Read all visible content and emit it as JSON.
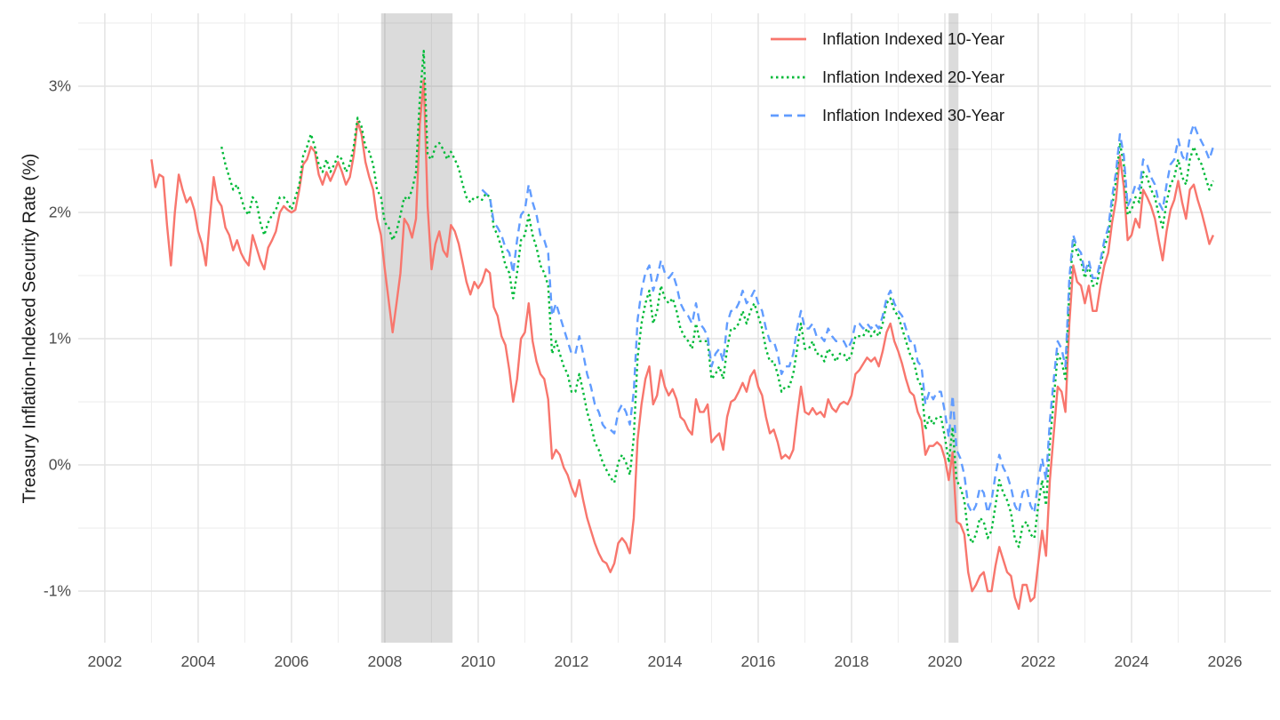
{
  "figure": {
    "background": "#ffffff",
    "axis_text_color": "#4d4d4d",
    "axis_title_color": "#1a1a1a",
    "grid_major_color": "#e3e3e3",
    "grid_minor_color": "#eeeeee",
    "recession_band_color": "rgba(127,127,127,0.28)"
  },
  "chart_data": {
    "type": "line",
    "title": "",
    "xlabel": "",
    "ylabel": "Treasury Inflation-Indexed Security Rate (%)",
    "grid": "major+minor",
    "legend_position": "top-right-inside",
    "xlim": [
      2001.43,
      2026.99
    ],
    "ylim": [
      -1.408,
      3.577
    ],
    "x_ticks": [
      2002,
      2004,
      2006,
      2008,
      2010,
      2012,
      2014,
      2016,
      2018,
      2020,
      2022,
      2024,
      2026
    ],
    "x_tick_labels": [
      "2002",
      "2004",
      "2006",
      "2008",
      "2010",
      "2012",
      "2014",
      "2016",
      "2018",
      "2020",
      "2022",
      "2024",
      "2026"
    ],
    "x_minor_ticks": [
      2003,
      2005,
      2007,
      2009,
      2011,
      2013,
      2015,
      2017,
      2019,
      2021,
      2023,
      2025
    ],
    "y_ticks": [
      3,
      2,
      1,
      0,
      -1
    ],
    "y_tick_labels": [
      "3%",
      "2%",
      "1%",
      "0%",
      "-1%"
    ],
    "y_minor_ticks": [
      3.5,
      2.5,
      1.5,
      0.5,
      -0.5
    ],
    "recession_bands": [
      {
        "start": 2007.92,
        "end": 2009.45
      },
      {
        "start": 2020.08,
        "end": 2020.29
      }
    ],
    "series": [
      {
        "name": "Inflation Indexed 10-Year",
        "color": "#F8766D",
        "line_style": "solid",
        "start_year": 2003.0,
        "interval_years": 0.083333,
        "values": [
          2.42,
          2.2,
          2.3,
          2.28,
          1.9,
          1.58,
          2.0,
          2.3,
          2.18,
          2.08,
          2.12,
          2.02,
          1.85,
          1.75,
          1.58,
          1.95,
          2.28,
          2.1,
          2.05,
          1.88,
          1.82,
          1.7,
          1.78,
          1.68,
          1.62,
          1.58,
          1.82,
          1.72,
          1.62,
          1.55,
          1.72,
          1.78,
          1.85,
          2.0,
          2.05,
          2.02,
          2.0,
          2.02,
          2.18,
          2.38,
          2.42,
          2.52,
          2.48,
          2.3,
          2.22,
          2.32,
          2.25,
          2.32,
          2.4,
          2.32,
          2.22,
          2.28,
          2.45,
          2.72,
          2.62,
          2.4,
          2.28,
          2.18,
          1.95,
          1.82,
          1.55,
          1.3,
          1.05,
          1.28,
          1.52,
          1.95,
          1.9,
          1.8,
          1.95,
          2.7,
          3.05,
          2.05,
          1.55,
          1.75,
          1.85,
          1.7,
          1.65,
          1.9,
          1.85,
          1.75,
          1.6,
          1.45,
          1.35,
          1.45,
          1.4,
          1.45,
          1.55,
          1.52,
          1.25,
          1.18,
          1.02,
          0.95,
          0.75,
          0.5,
          0.68,
          1.0,
          1.05,
          1.28,
          0.98,
          0.82,
          0.72,
          0.68,
          0.52,
          0.05,
          0.12,
          0.08,
          -0.02,
          -0.08,
          -0.18,
          -0.25,
          -0.12,
          -0.28,
          -0.42,
          -0.52,
          -0.62,
          -0.7,
          -0.76,
          -0.78,
          -0.85,
          -0.78,
          -0.62,
          -0.58,
          -0.62,
          -0.7,
          -0.42,
          0.2,
          0.48,
          0.68,
          0.78,
          0.48,
          0.55,
          0.75,
          0.62,
          0.55,
          0.6,
          0.52,
          0.38,
          0.35,
          0.28,
          0.24,
          0.52,
          0.42,
          0.42,
          0.48,
          0.18,
          0.22,
          0.25,
          0.12,
          0.38,
          0.5,
          0.52,
          0.58,
          0.65,
          0.58,
          0.7,
          0.75,
          0.62,
          0.55,
          0.38,
          0.25,
          0.28,
          0.18,
          0.05,
          0.08,
          0.05,
          0.12,
          0.38,
          0.62,
          0.42,
          0.4,
          0.45,
          0.4,
          0.42,
          0.38,
          0.52,
          0.45,
          0.42,
          0.48,
          0.5,
          0.48,
          0.55,
          0.72,
          0.75,
          0.8,
          0.85,
          0.82,
          0.85,
          0.78,
          0.9,
          1.05,
          1.12,
          0.98,
          0.9,
          0.8,
          0.68,
          0.58,
          0.55,
          0.42,
          0.35,
          0.08,
          0.15,
          0.15,
          0.18,
          0.15,
          0.05,
          -0.12,
          0.1,
          -0.45,
          -0.47,
          -0.55,
          -0.85,
          -1.0,
          -0.95,
          -0.88,
          -0.85,
          -1.0,
          -1.0,
          -0.8,
          -0.65,
          -0.75,
          -0.85,
          -0.88,
          -1.05,
          -1.14,
          -0.95,
          -0.95,
          -1.08,
          -1.05,
          -0.78,
          -0.52,
          -0.72,
          -0.12,
          0.25,
          0.62,
          0.58,
          0.42,
          1.12,
          1.58,
          1.45,
          1.42,
          1.28,
          1.42,
          1.22,
          1.22,
          1.42,
          1.58,
          1.68,
          1.92,
          2.1,
          2.45,
          2.2,
          1.78,
          1.82,
          1.95,
          1.88,
          2.18,
          2.12,
          2.05,
          1.95,
          1.78,
          1.62,
          1.85,
          2.02,
          2.1,
          2.25,
          2.08,
          1.95,
          2.18,
          2.22,
          2.1,
          2.0,
          1.88,
          1.75,
          1.82
        ]
      },
      {
        "name": "Inflation Indexed 20-Year",
        "color": "#00BA38",
        "line_style": "dotted",
        "start_year": 2004.5,
        "interval_years": 0.083333,
        "values": [
          2.52,
          2.38,
          2.28,
          2.18,
          2.22,
          2.12,
          2.02,
          1.98,
          2.12,
          2.08,
          1.92,
          1.82,
          1.92,
          1.98,
          2.02,
          2.12,
          2.12,
          2.08,
          2.02,
          2.12,
          2.22,
          2.45,
          2.52,
          2.62,
          2.52,
          2.38,
          2.32,
          2.42,
          2.32,
          2.38,
          2.45,
          2.42,
          2.32,
          2.38,
          2.52,
          2.75,
          2.68,
          2.52,
          2.48,
          2.38,
          2.18,
          2.12,
          1.92,
          1.88,
          1.78,
          1.85,
          1.98,
          2.12,
          2.1,
          2.18,
          2.32,
          2.9,
          3.28,
          2.45,
          2.42,
          2.52,
          2.55,
          2.5,
          2.42,
          2.48,
          2.42,
          2.35,
          2.22,
          2.12,
          2.08,
          2.12,
          2.12,
          2.1,
          2.15,
          2.12,
          1.88,
          1.82,
          1.72,
          1.58,
          1.52,
          1.32,
          1.52,
          1.78,
          1.82,
          1.98,
          1.82,
          1.72,
          1.58,
          1.52,
          1.42,
          0.88,
          0.98,
          0.88,
          0.78,
          0.72,
          0.58,
          0.58,
          0.72,
          0.58,
          0.42,
          0.32,
          0.18,
          0.12,
          0.02,
          -0.04,
          -0.1,
          -0.14,
          0.02,
          0.08,
          0.02,
          -0.08,
          0.22,
          0.85,
          1.12,
          1.28,
          1.38,
          1.12,
          1.22,
          1.42,
          1.32,
          1.28,
          1.32,
          1.22,
          1.08,
          1.02,
          0.98,
          0.92,
          1.12,
          0.98,
          0.98,
          0.98,
          0.68,
          0.72,
          0.78,
          0.68,
          0.92,
          1.08,
          1.08,
          1.12,
          1.22,
          1.12,
          1.22,
          1.28,
          1.18,
          1.08,
          0.92,
          0.82,
          0.82,
          0.72,
          0.58,
          0.62,
          0.62,
          0.72,
          0.92,
          1.12,
          0.92,
          0.92,
          0.98,
          0.88,
          0.88,
          0.82,
          0.92,
          0.88,
          0.82,
          0.88,
          0.88,
          0.82,
          0.88,
          1.02,
          1.02,
          1.02,
          1.08,
          1.02,
          1.06,
          1.02,
          1.12,
          1.28,
          1.32,
          1.22,
          1.18,
          1.08,
          0.98,
          0.88,
          0.82,
          0.68,
          0.62,
          0.28,
          0.38,
          0.32,
          0.38,
          0.38,
          0.22,
          0.02,
          0.3,
          -0.12,
          -0.18,
          -0.28,
          -0.55,
          -0.62,
          -0.55,
          -0.42,
          -0.45,
          -0.58,
          -0.52,
          -0.32,
          -0.12,
          -0.22,
          -0.28,
          -0.38,
          -0.58,
          -0.65,
          -0.48,
          -0.45,
          -0.55,
          -0.58,
          -0.32,
          -0.12,
          -0.32,
          0.18,
          0.52,
          0.88,
          0.82,
          0.68,
          1.38,
          1.78,
          1.68,
          1.62,
          1.48,
          1.58,
          1.42,
          1.42,
          1.58,
          1.72,
          1.82,
          2.05,
          2.25,
          2.55,
          2.38,
          1.98,
          2.02,
          2.12,
          2.08,
          2.32,
          2.28,
          2.18,
          2.12,
          1.98,
          1.88,
          2.08,
          2.22,
          2.28,
          2.42,
          2.28,
          2.22,
          2.42,
          2.52,
          2.44,
          2.38,
          2.28,
          2.18,
          2.25
        ]
      },
      {
        "name": "Inflation Indexed 30-Year",
        "color": "#619CFF",
        "line_style": "dashed",
        "start_year": 2010.0833,
        "interval_years": 0.083333,
        "values": [
          2.18,
          2.15,
          2.12,
          1.92,
          1.88,
          1.82,
          1.72,
          1.68,
          1.52,
          1.78,
          1.98,
          2.02,
          2.22,
          2.08,
          1.98,
          1.82,
          1.78,
          1.68,
          1.18,
          1.28,
          1.18,
          1.08,
          0.98,
          0.88,
          0.88,
          1.02,
          0.88,
          0.72,
          0.62,
          0.48,
          0.42,
          0.32,
          0.28,
          0.28,
          0.25,
          0.42,
          0.48,
          0.42,
          0.32,
          0.58,
          1.15,
          1.38,
          1.52,
          1.58,
          1.38,
          1.48,
          1.62,
          1.52,
          1.48,
          1.52,
          1.42,
          1.28,
          1.22,
          1.18,
          1.12,
          1.28,
          1.12,
          1.08,
          1.02,
          0.78,
          0.88,
          0.92,
          0.82,
          1.12,
          1.22,
          1.22,
          1.28,
          1.38,
          1.28,
          1.32,
          1.38,
          1.28,
          1.22,
          1.08,
          0.98,
          0.98,
          0.88,
          0.72,
          0.78,
          0.78,
          0.88,
          1.08,
          1.22,
          1.08,
          1.08,
          1.12,
          1.02,
          1.02,
          0.98,
          1.08,
          1.02,
          0.98,
          0.98,
          0.98,
          0.92,
          0.98,
          1.12,
          1.12,
          1.08,
          1.12,
          1.08,
          1.12,
          1.08,
          1.18,
          1.32,
          1.38,
          1.28,
          1.22,
          1.18,
          1.08,
          0.98,
          0.98,
          0.82,
          0.78,
          0.48,
          0.58,
          0.52,
          0.58,
          0.58,
          0.42,
          0.22,
          0.55,
          0.12,
          0.05,
          -0.08,
          -0.32,
          -0.38,
          -0.32,
          -0.18,
          -0.22,
          -0.38,
          -0.28,
          -0.08,
          0.08,
          -0.02,
          -0.08,
          -0.18,
          -0.32,
          -0.38,
          -0.22,
          -0.18,
          -0.32,
          -0.38,
          -0.12,
          0.05,
          -0.12,
          0.35,
          0.68,
          0.98,
          0.92,
          0.78,
          1.48,
          1.82,
          1.72,
          1.68,
          1.52,
          1.62,
          1.48,
          1.48,
          1.62,
          1.78,
          1.88,
          2.12,
          2.32,
          2.62,
          2.45,
          2.05,
          2.12,
          2.22,
          2.18,
          2.42,
          2.38,
          2.28,
          2.22,
          2.08,
          2.02,
          2.22,
          2.38,
          2.42,
          2.58,
          2.45,
          2.4,
          2.6,
          2.7,
          2.62,
          2.56,
          2.5,
          2.42,
          2.52
        ]
      }
    ]
  }
}
